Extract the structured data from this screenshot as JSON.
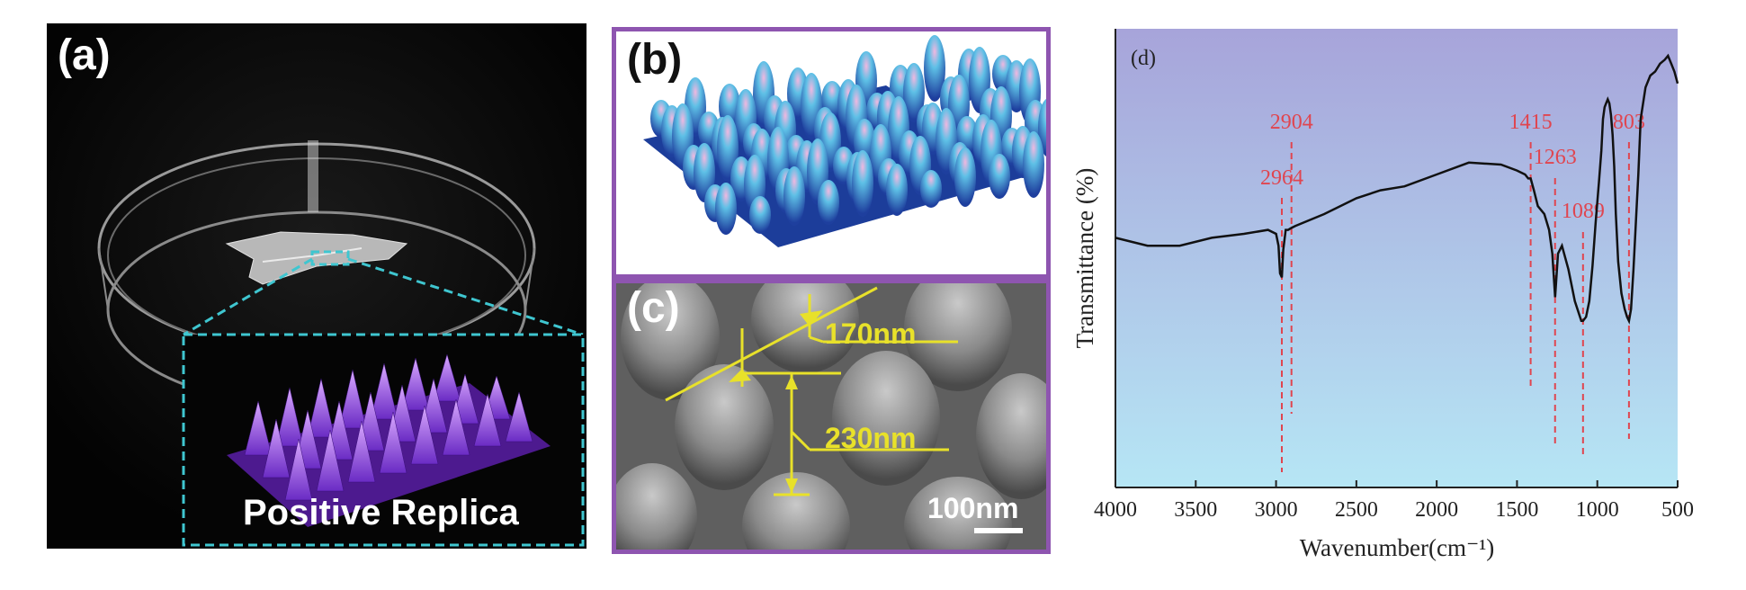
{
  "panel_a": {
    "label": "(a)",
    "caption": "Positive Replica"
  },
  "panel_b": {
    "label": "(b)"
  },
  "panel_c": {
    "label": "(c)",
    "dim_top": "170nm",
    "dim_height": "230nm",
    "scale_bar": "100nm"
  },
  "panel_d": {
    "label": "(d)"
  },
  "colors": {
    "frame": "#8e55b0",
    "dash": "#3fc6d0",
    "annotation": "#e8e12a",
    "peak_label": "#e0454f"
  },
  "chart_data": {
    "type": "line",
    "title": "",
    "xlabel": "Wavenumber(cm⁻¹)",
    "ylabel": "Transmittance (%)",
    "xlim": [
      4000,
      500
    ],
    "x_ticks": [
      "4000",
      "3500",
      "3000",
      "2500",
      "2000",
      "1500",
      "1000",
      "500"
    ],
    "y_ticks": "none",
    "grid": false,
    "reversed_x": true,
    "series": [
      {
        "x": [
          4000,
          3800,
          3600,
          3400,
          3200,
          3050,
          3000,
          2985,
          2975,
          2964,
          2955,
          2940,
          2925,
          2904,
          2880,
          2700,
          2500,
          2350,
          2200,
          2000,
          1800,
          1600,
          1500,
          1450,
          1430,
          1415,
          1395,
          1370,
          1330,
          1300,
          1280,
          1263,
          1245,
          1220,
          1180,
          1140,
          1100,
          1089,
          1070,
          1050,
          1030,
          1010,
          990,
          975,
          965,
          955,
          945,
          935,
          925,
          915,
          905,
          895,
          885,
          870,
          850,
          830,
          815,
          803,
          790,
          775,
          760,
          745,
          730,
          700,
          670,
          640,
          610,
          580,
          560,
          540,
          520,
          500
        ],
        "values": [
          0.54,
          0.52,
          0.52,
          0.54,
          0.55,
          0.56,
          0.55,
          0.52,
          0.45,
          0.44,
          0.51,
          0.56,
          0.56,
          0.565,
          0.57,
          0.6,
          0.64,
          0.66,
          0.67,
          0.7,
          0.73,
          0.725,
          0.71,
          0.7,
          0.69,
          0.69,
          0.66,
          0.62,
          0.6,
          0.56,
          0.5,
          0.39,
          0.5,
          0.52,
          0.46,
          0.38,
          0.33,
          0.33,
          0.34,
          0.38,
          0.47,
          0.58,
          0.68,
          0.76,
          0.84,
          0.87,
          0.88,
          0.89,
          0.88,
          0.85,
          0.8,
          0.72,
          0.6,
          0.48,
          0.4,
          0.36,
          0.34,
          0.33,
          0.36,
          0.46,
          0.58,
          0.7,
          0.84,
          0.92,
          0.95,
          0.96,
          0.98,
          0.99,
          1.0,
          0.98,
          0.96,
          0.93
        ]
      }
    ],
    "peaks": [
      {
        "x": 2964,
        "label": "2964"
      },
      {
        "x": 2904,
        "label": "2904"
      },
      {
        "x": 1415,
        "label": "1415"
      },
      {
        "x": 1263,
        "label": "1263"
      },
      {
        "x": 1089,
        "label": "1089"
      },
      {
        "x": 803,
        "label": "803"
      }
    ]
  }
}
